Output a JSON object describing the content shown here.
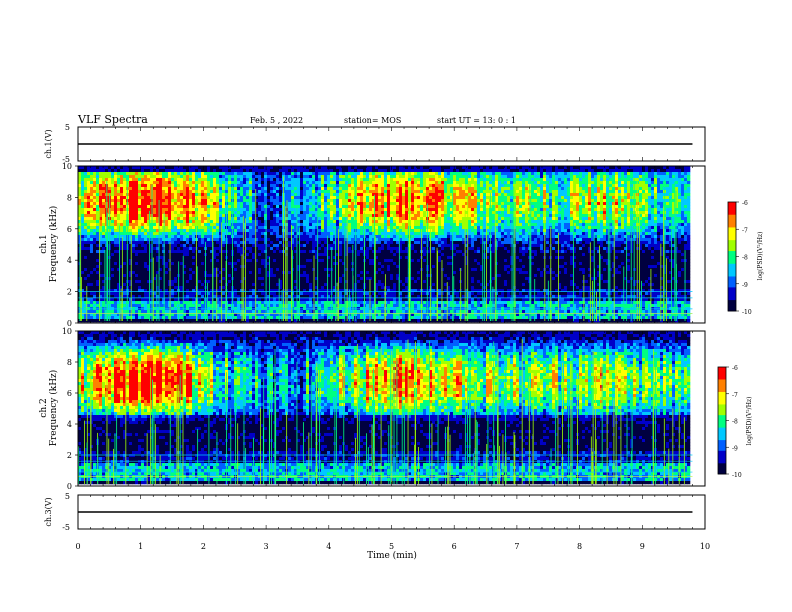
{
  "header": {
    "title": "VLF Spectra",
    "date": "Feb. 5 , 2022",
    "station": "station= MOS",
    "start_ut": "start UT = 13: 0 : 1"
  },
  "chart_data": [
    {
      "type": "line",
      "panel": "ch1-voltage",
      "ylabel": "ch.1(V)",
      "ylim": [
        -5,
        5
      ],
      "yticks": [
        "5",
        "-5"
      ],
      "xlim": [
        0,
        10
      ],
      "series": [
        {
          "x": [
            0,
            9.8
          ],
          "y": [
            0,
            0
          ]
        }
      ]
    },
    {
      "type": "heatmap",
      "panel": "ch1-spectrogram",
      "ylabel_top": "ch.1",
      "ylabel": "Frequency (kHz)",
      "ylim": [
        0,
        10
      ],
      "yticks": [
        "0",
        "2",
        "4",
        "6",
        "8",
        "10"
      ],
      "xlim": [
        0,
        10
      ],
      "data_xmax": 9.8,
      "strong_band_khz": [
        6.5,
        9.0
      ],
      "colorbar": {
        "label": "log(PSD)(V²/Hz)",
        "range": [
          -10,
          -6
        ],
        "ticks": [
          "-6",
          "-7",
          "-8",
          "-9",
          "-10"
        ]
      }
    },
    {
      "type": "heatmap",
      "panel": "ch2-spectrogram",
      "ylabel_top": "ch.2",
      "ylabel": "Frequency (kHz)",
      "ylim": [
        0,
        10
      ],
      "yticks": [
        "0",
        "2",
        "4",
        "6",
        "8",
        "10"
      ],
      "xlim": [
        0,
        10
      ],
      "data_xmax": 9.8,
      "strong_band_khz": [
        5.5,
        8.0
      ],
      "colorbar": {
        "label": "log(PSD)(V²/Hz)",
        "range": [
          -10,
          -6
        ],
        "ticks": [
          "-6",
          "-7",
          "-8",
          "-9",
          "-10"
        ]
      }
    },
    {
      "type": "line",
      "panel": "ch3-voltage",
      "ylabel": "ch.3(V)",
      "ylim": [
        -5,
        5
      ],
      "yticks": [
        "5",
        "-5"
      ],
      "xlim": [
        0,
        10
      ],
      "series": [
        {
          "x": [
            0,
            9.8
          ],
          "y": [
            0,
            0
          ]
        }
      ]
    }
  ],
  "xaxis": {
    "label": "Time (min)",
    "ticks": [
      "0",
      "1",
      "2",
      "3",
      "4",
      "5",
      "6",
      "7",
      "8",
      "9",
      "10"
    ]
  },
  "colors": {
    "colormap": [
      "#000040",
      "#0000c8",
      "#0060ff",
      "#00c8ff",
      "#00ff80",
      "#a0ff00",
      "#ffff00",
      "#ff8000",
      "#ff0000",
      "#ffffff"
    ]
  }
}
